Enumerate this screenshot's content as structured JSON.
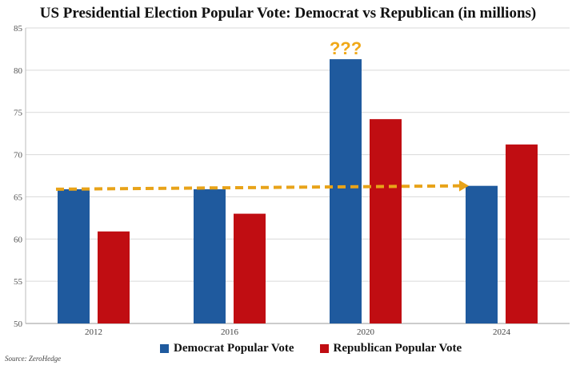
{
  "chart_data": {
    "type": "bar",
    "title": "US Presidential Election Popular Vote: Democrat vs Republican (in millions)",
    "categories": [
      "2012",
      "2016",
      "2020",
      "2024"
    ],
    "series": [
      {
        "name": "Democrat Popular Vote",
        "color": "#1f5a9e",
        "values": [
          65.9,
          65.9,
          81.3,
          66.3
        ]
      },
      {
        "name": "Republican Popular Vote",
        "color": "#c00d12",
        "values": [
          60.9,
          63.0,
          74.2,
          71.2
        ]
      }
    ],
    "ylim": [
      50,
      85
    ],
    "yticks": [
      "50",
      "55",
      "60",
      "65",
      "70",
      "75",
      "80",
      "85"
    ],
    "grid": true,
    "legend_position": "bottom-center",
    "annotations": [
      {
        "text": "???",
        "color": "#f0a818",
        "above": "2020 Democrat bar"
      },
      {
        "type": "dashed-arrow",
        "color": "#e8a319",
        "from_year": "2012",
        "to_year": "2024",
        "from_value": 65.9,
        "to_value": 66.3
      }
    ]
  },
  "source": "Source: ZeroHedge"
}
